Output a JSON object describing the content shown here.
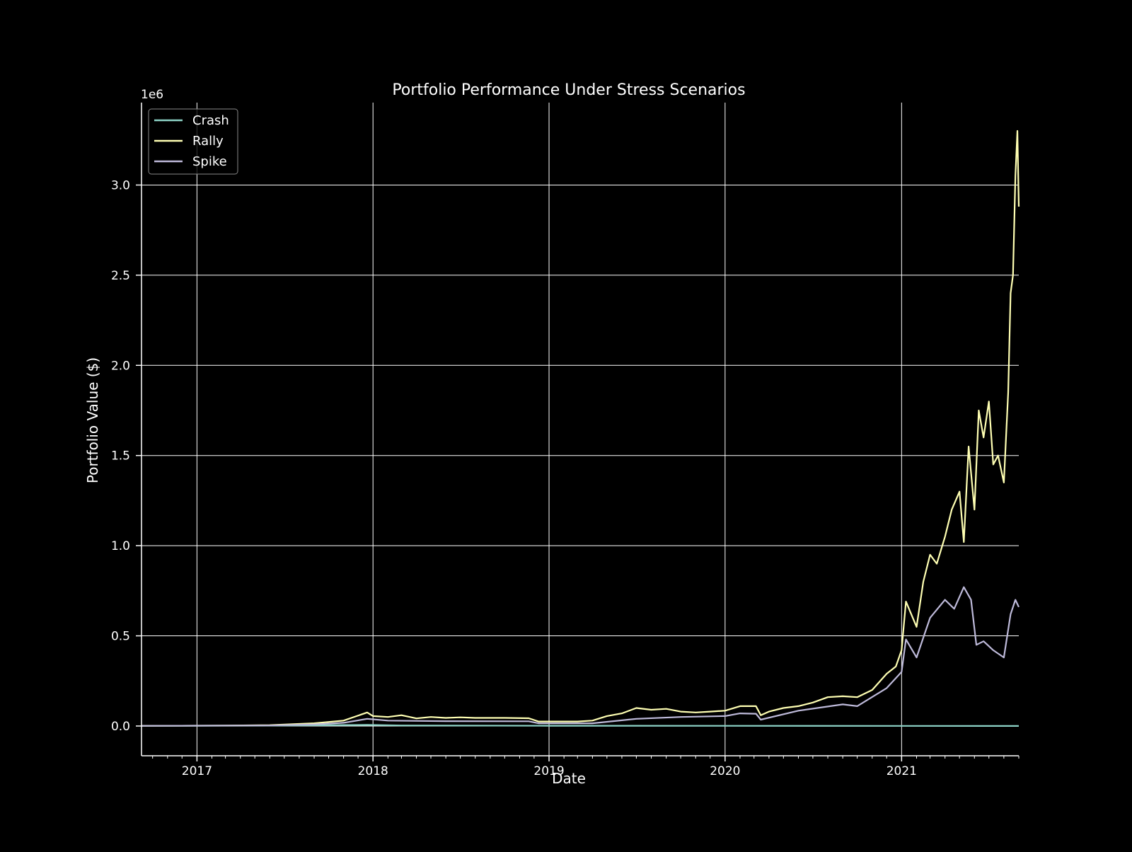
{
  "chart_data": {
    "type": "line",
    "title": "Portfolio Performance Under Stress Scenarios",
    "xlabel": "Date",
    "ylabel": "Portfolio Value ($)",
    "y_offset_label": "1e6",
    "xlim": [
      "2016-09-08",
      "2021-09-01"
    ],
    "ylim": [
      -165000,
      3457000
    ],
    "x_ticks": [
      {
        "date": "2017-01-01",
        "label": "2017"
      },
      {
        "date": "2018-01-01",
        "label": "2018"
      },
      {
        "date": "2019-01-01",
        "label": "2019"
      },
      {
        "date": "2020-01-01",
        "label": "2020"
      },
      {
        "date": "2021-01-01",
        "label": "2021"
      }
    ],
    "y_ticks": [
      {
        "value": 0,
        "label": "0.0"
      },
      {
        "value": 500000,
        "label": "0.5"
      },
      {
        "value": 1000000,
        "label": "1.0"
      },
      {
        "value": 1500000,
        "label": "1.5"
      },
      {
        "value": 2000000,
        "label": "2.0"
      },
      {
        "value": 2500000,
        "label": "2.5"
      },
      {
        "value": 3000000,
        "label": "3.0"
      }
    ],
    "grid": true,
    "legend_position": "top-left",
    "background": "#000000",
    "series": [
      {
        "name": "Crash",
        "color": "#8dd3c7",
        "points": [
          [
            "2016-09-08",
            1000
          ],
          [
            "2017-06-01",
            2000
          ],
          [
            "2017-12-20",
            6000
          ],
          [
            "2018-03-01",
            3000
          ],
          [
            "2019-01-01",
            1500
          ],
          [
            "2020-01-01",
            1000
          ],
          [
            "2021-01-01",
            500
          ],
          [
            "2021-09-01",
            300
          ]
        ]
      },
      {
        "name": "Rally",
        "color": "#ffffb3",
        "points": [
          [
            "2016-09-08",
            1000
          ],
          [
            "2017-03-01",
            2000
          ],
          [
            "2017-06-01",
            5000
          ],
          [
            "2017-09-01",
            15000
          ],
          [
            "2017-11-01",
            30000
          ],
          [
            "2017-12-20",
            75000
          ],
          [
            "2018-01-01",
            55000
          ],
          [
            "2018-02-01",
            50000
          ],
          [
            "2018-03-01",
            60000
          ],
          [
            "2018-04-01",
            42000
          ],
          [
            "2018-05-01",
            50000
          ],
          [
            "2018-06-01",
            45000
          ],
          [
            "2018-07-01",
            48000
          ],
          [
            "2018-08-01",
            45000
          ],
          [
            "2018-09-01",
            45000
          ],
          [
            "2018-10-01",
            45000
          ],
          [
            "2018-11-20",
            43000
          ],
          [
            "2018-12-10",
            25000
          ],
          [
            "2019-01-01",
            25000
          ],
          [
            "2019-03-01",
            25000
          ],
          [
            "2019-04-01",
            30000
          ],
          [
            "2019-05-01",
            55000
          ],
          [
            "2019-06-01",
            70000
          ],
          [
            "2019-07-01",
            100000
          ],
          [
            "2019-08-01",
            90000
          ],
          [
            "2019-09-01",
            95000
          ],
          [
            "2019-10-01",
            80000
          ],
          [
            "2019-11-01",
            75000
          ],
          [
            "2019-12-01",
            80000
          ],
          [
            "2020-01-01",
            85000
          ],
          [
            "2020-02-01",
            110000
          ],
          [
            "2020-03-05",
            110000
          ],
          [
            "2020-03-15",
            60000
          ],
          [
            "2020-04-01",
            80000
          ],
          [
            "2020-05-01",
            100000
          ],
          [
            "2020-06-01",
            110000
          ],
          [
            "2020-07-01",
            130000
          ],
          [
            "2020-08-01",
            160000
          ],
          [
            "2020-09-01",
            165000
          ],
          [
            "2020-10-01",
            160000
          ],
          [
            "2020-11-01",
            200000
          ],
          [
            "2020-12-01",
            290000
          ],
          [
            "2020-12-20",
            330000
          ],
          [
            "2021-01-01",
            420000
          ],
          [
            "2021-01-10",
            690000
          ],
          [
            "2021-02-01",
            550000
          ],
          [
            "2021-02-15",
            800000
          ],
          [
            "2021-03-01",
            950000
          ],
          [
            "2021-03-15",
            900000
          ],
          [
            "2021-04-01",
            1050000
          ],
          [
            "2021-04-15",
            1200000
          ],
          [
            "2021-05-01",
            1300000
          ],
          [
            "2021-05-10",
            1020000
          ],
          [
            "2021-05-20",
            1550000
          ],
          [
            "2021-06-01",
            1200000
          ],
          [
            "2021-06-10",
            1750000
          ],
          [
            "2021-06-20",
            1600000
          ],
          [
            "2021-07-01",
            1800000
          ],
          [
            "2021-07-10",
            1450000
          ],
          [
            "2021-07-20",
            1500000
          ],
          [
            "2021-08-01",
            1350000
          ],
          [
            "2021-08-10",
            1850000
          ],
          [
            "2021-08-15",
            2400000
          ],
          [
            "2021-08-20",
            2500000
          ],
          [
            "2021-08-25",
            3050000
          ],
          [
            "2021-08-29",
            3300000
          ],
          [
            "2021-09-01",
            2880000
          ]
        ]
      },
      {
        "name": "Spike",
        "color": "#bebada",
        "points": [
          [
            "2016-09-08",
            1000
          ],
          [
            "2017-06-01",
            3000
          ],
          [
            "2017-09-01",
            9000
          ],
          [
            "2017-11-01",
            18000
          ],
          [
            "2017-12-20",
            40000
          ],
          [
            "2018-02-01",
            30000
          ],
          [
            "2018-06-01",
            27000
          ],
          [
            "2018-11-20",
            26000
          ],
          [
            "2018-12-10",
            15000
          ],
          [
            "2019-04-01",
            15000
          ],
          [
            "2019-07-01",
            40000
          ],
          [
            "2019-10-01",
            50000
          ],
          [
            "2020-01-01",
            55000
          ],
          [
            "2020-02-01",
            70000
          ],
          [
            "2020-03-05",
            68000
          ],
          [
            "2020-03-15",
            35000
          ],
          [
            "2020-06-01",
            85000
          ],
          [
            "2020-09-01",
            120000
          ],
          [
            "2020-10-01",
            110000
          ],
          [
            "2020-12-01",
            210000
          ],
          [
            "2021-01-01",
            300000
          ],
          [
            "2021-01-10",
            480000
          ],
          [
            "2021-02-01",
            380000
          ],
          [
            "2021-03-01",
            600000
          ],
          [
            "2021-04-01",
            700000
          ],
          [
            "2021-04-20",
            650000
          ],
          [
            "2021-05-10",
            770000
          ],
          [
            "2021-05-25",
            700000
          ],
          [
            "2021-06-05",
            450000
          ],
          [
            "2021-06-20",
            470000
          ],
          [
            "2021-07-10",
            420000
          ],
          [
            "2021-08-01",
            380000
          ],
          [
            "2021-08-15",
            620000
          ],
          [
            "2021-08-25",
            700000
          ],
          [
            "2021-09-01",
            660000
          ]
        ]
      }
    ]
  }
}
